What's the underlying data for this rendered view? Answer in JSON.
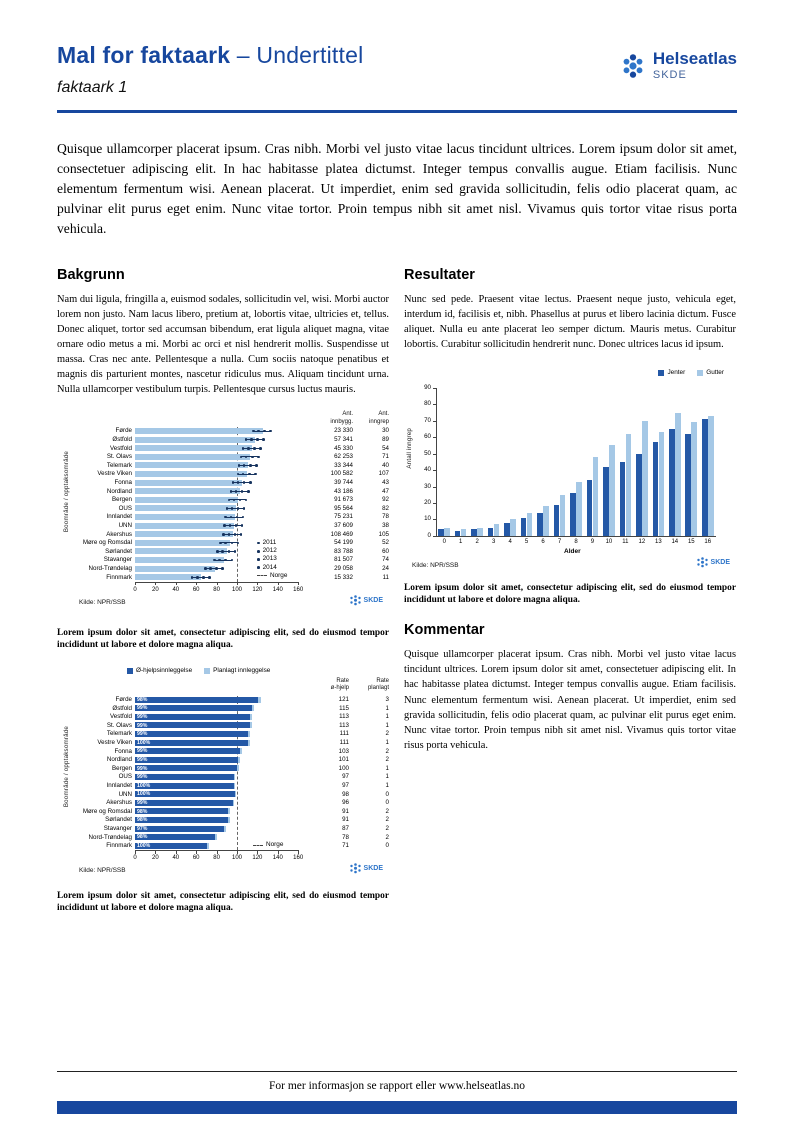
{
  "header": {
    "title": "Mal for faktaark",
    "title_suffix": " – Undertittel",
    "subtitle": "faktaark 1",
    "logo_title": "Helseatlas",
    "logo_sub": "SKDE"
  },
  "intro": "Quisque ullamcorper placerat ipsum. Cras nibh. Morbi vel justo vitae lacus tincidunt ultrices. Lorem ipsum dolor sit amet, consectetuer adipiscing elit. In hac habitasse platea dictumst. Integer tempus convallis augue. Etiam facilisis. Nunc elementum fermentum wisi. Aenean placerat. Ut imperdiet, enim sed gravida sollicitudin, felis odio placerat quam, ac pulvinar elit purus eget enim. Nunc vitae tortor. Proin tempus nibh sit amet nisl. Vivamus quis tortor vitae risus porta vehicula.",
  "bakgrunn": {
    "heading": "Bakgrunn",
    "body": "Nam dui ligula, fringilla a, euismod sodales, sollicitudin vel, wisi. Morbi auctor lorem non justo. Nam lacus libero, pretium at, lobortis vitae, ultricies et, tellus. Donec aliquet, tortor sed accumsan bibendum, erat ligula aliquet magna, vitae ornare odio metus a mi. Morbi ac orci et nisl hendrerit mollis. Suspendisse ut massa. Cras nec ante. Pellentesque a nulla. Cum sociis natoque penatibus et magnis dis parturient montes, nascetur ridiculus mus. Aliquam tincidunt urna. Nulla ullamcorper vestibulum turpis. Pellentesque cursus luctus mauris."
  },
  "resultater": {
    "heading": "Resultater",
    "body": "Nunc sed pede. Praesent vitae lectus. Praesent neque justo, vehicula eget, interdum id, facilisis et, nibh. Phasellus at purus et libero lacinia dictum. Fusce aliquet. Nulla eu ante placerat leo semper dictum. Mauris metus. Curabitur lobortis. Curabitur sollicitudin hendrerit nunc. Donec ultrices lacus id ipsum."
  },
  "kommentar": {
    "heading": "Kommentar",
    "body": "Quisque ullamcorper placerat ipsum. Cras nibh. Morbi vel justo vitae lacus tincidunt ultrices. Lorem ipsum dolor sit amet, consectetuer adipiscing elit. In hac habitasse platea dictumst. Integer tempus convallis augue. Etiam facilisis. Nunc elementum fermentum wisi. Aenean placerat. Ut imperdiet, enim sed gravida sollicitudin, felis odio placerat quam, ac pulvinar elit purus eget enim. Nunc vitae tortor. Proin tempus nibh sit amet nisl. Vivamus quis tortor vitae risus porta vehicula."
  },
  "caption1": "Lorem ipsum dolor sit amet, consectetur adipiscing elit, sed do eiusmod tempor incididunt ut labore et dolore magna aliqua.",
  "caption2": "Lorem ipsum dolor sit amet, consectetur adipiscing elit, sed do eiusmod tempor incididunt ut labore et dolore magna aliqua.",
  "caption3": "Lorem ipsum dolor sit amet, consectetur adipiscing elit, sed do eiusmod tempor incididunt ut labore et dolore magna aliqua.",
  "footer": "For mer informasjon se rapport eller www.helseatlas.no",
  "logos": {
    "skde": "SKDE"
  },
  "colors": {
    "accent": "#17479E",
    "bar_light": "#A5C8E6",
    "bar_dark": "#2458A6",
    "marker": "#16335E"
  },
  "chart_data": [
    {
      "id": "chart1",
      "type": "bar",
      "orientation": "horizontal",
      "ylabel": "Boområde / opptaksområde",
      "xlim": [
        0,
        160
      ],
      "xticks": [
        0,
        20,
        40,
        60,
        80,
        100,
        120,
        140,
        160
      ],
      "legend_years": [
        "2011",
        "2012",
        "2013",
        "2014"
      ],
      "legend_line": "Norge",
      "norge_value": 100,
      "marker_offsets": [
        -9,
        -4,
        2,
        8
      ],
      "col_headers": [
        "Ant.\ninnbygg.",
        "Ant.\ninngrep"
      ],
      "rows": [
        {
          "label": "Førde",
          "value": 125,
          "innbygg": "23 330",
          "inngrep": "30"
        },
        {
          "label": "Østfold",
          "value": 118,
          "innbygg": "57 341",
          "inngrep": "89"
        },
        {
          "label": "Vestfold",
          "value": 115,
          "innbygg": "45 330",
          "inngrep": "54"
        },
        {
          "label": "St. Olavs",
          "value": 113,
          "innbygg": "62 253",
          "inngrep": "71"
        },
        {
          "label": "Telemark",
          "value": 111,
          "innbygg": "33 344",
          "inngrep": "40"
        },
        {
          "label": "Vestre Viken",
          "value": 110,
          "innbygg": "100 582",
          "inngrep": "107"
        },
        {
          "label": "Fonna",
          "value": 105,
          "innbygg": "39 744",
          "inngrep": "43"
        },
        {
          "label": "Nordland",
          "value": 103,
          "innbygg": "43 186",
          "inngrep": "47"
        },
        {
          "label": "Bergen",
          "value": 101,
          "innbygg": "91 673",
          "inngrep": "92"
        },
        {
          "label": "OUS",
          "value": 99,
          "innbygg": "95 564",
          "inngrep": "82"
        },
        {
          "label": "Innlandet",
          "value": 98,
          "innbygg": "75 231",
          "inngrep": "78"
        },
        {
          "label": "UNN",
          "value": 97,
          "innbygg": "37 609",
          "inngrep": "38"
        },
        {
          "label": "Akershus",
          "value": 96,
          "innbygg": "108 469",
          "inngrep": "105"
        },
        {
          "label": "Møre og Romsdal",
          "value": 93,
          "innbygg": "54 199",
          "inngrep": "52"
        },
        {
          "label": "Sørlandet",
          "value": 90,
          "innbygg": "83 788",
          "inngrep": "60"
        },
        {
          "label": "Stavanger",
          "value": 87,
          "innbygg": "81 507",
          "inngrep": "74"
        },
        {
          "label": "Nord-Trøndelag",
          "value": 78,
          "innbygg": "29 058",
          "inngrep": "24"
        },
        {
          "label": "Finnmark",
          "value": 65,
          "innbygg": "15 332",
          "inngrep": "11"
        }
      ],
      "source": "Kilde: NPR/SSB"
    },
    {
      "id": "chart2",
      "type": "bar",
      "orientation": "horizontal",
      "stacked": true,
      "ylabel": "Boområde / opptaksområde",
      "legend": [
        {
          "label": "Ø-hjelpsinnleggelse",
          "color": "#2458A6"
        },
        {
          "label": "Planlagt innleggelse",
          "color": "#A5C8E6"
        }
      ],
      "xlim": [
        0,
        160
      ],
      "xticks": [
        0,
        20,
        40,
        60,
        80,
        100,
        120,
        140,
        160
      ],
      "norge_value": 100,
      "legend_line": "Norge",
      "col_headers": [
        "Rate\nø-hjelp",
        "Rate\nplanlagt"
      ],
      "rows": [
        {
          "label": "Førde",
          "pct": "98%",
          "ohjelp": 121,
          "planlagt": 3
        },
        {
          "label": "Østfold",
          "pct": "99%",
          "ohjelp": 115,
          "planlagt": 1
        },
        {
          "label": "Vestfold",
          "pct": "99%",
          "ohjelp": 113,
          "planlagt": 1
        },
        {
          "label": "St. Olavs",
          "pct": "99%",
          "ohjelp": 113,
          "planlagt": 1
        },
        {
          "label": "Telemark",
          "pct": "99%",
          "ohjelp": 111,
          "planlagt": 2
        },
        {
          "label": "Vestre Viken",
          "pct": "100%",
          "ohjelp": 111,
          "planlagt": 1
        },
        {
          "label": "Fonna",
          "pct": "99%",
          "ohjelp": 103,
          "planlagt": 2
        },
        {
          "label": "Nordland",
          "pct": "99%",
          "ohjelp": 101,
          "planlagt": 2
        },
        {
          "label": "Bergen",
          "pct": "99%",
          "ohjelp": 100,
          "planlagt": 1
        },
        {
          "label": "OUS",
          "pct": "99%",
          "ohjelp": 97,
          "planlagt": 1
        },
        {
          "label": "Innlandet",
          "pct": "100%",
          "ohjelp": 97,
          "planlagt": 1
        },
        {
          "label": "UNN",
          "pct": "100%",
          "ohjelp": 98,
          "planlagt": 0
        },
        {
          "label": "Akershus",
          "pct": "99%",
          "ohjelp": 96,
          "planlagt": 0
        },
        {
          "label": "Møre og Romsdal",
          "pct": "98%",
          "ohjelp": 91,
          "planlagt": 2
        },
        {
          "label": "Sørlandet",
          "pct": "98%",
          "ohjelp": 91,
          "planlagt": 2
        },
        {
          "label": "Stavanger",
          "pct": "97%",
          "ohjelp": 87,
          "planlagt": 2
        },
        {
          "label": "Nord-Trøndelag",
          "pct": "98%",
          "ohjelp": 78,
          "planlagt": 2
        },
        {
          "label": "Finnmark",
          "pct": "100%",
          "ohjelp": 71,
          "planlagt": 0
        }
      ],
      "source": "Kilde: NPR/SSB"
    },
    {
      "id": "chart3",
      "type": "bar",
      "orientation": "vertical",
      "xlabel": "Alder",
      "ylabel": "Antall inngrep",
      "ylim": [
        0,
        90
      ],
      "yticks": [
        0,
        10,
        20,
        30,
        40,
        50,
        60,
        70,
        80,
        90
      ],
      "categories": [
        "0",
        "1",
        "2",
        "3",
        "4",
        "5",
        "6",
        "7",
        "8",
        "9",
        "10",
        "11",
        "12",
        "13",
        "14",
        "15",
        "16"
      ],
      "series": [
        {
          "name": "Jenter",
          "color": "#2458A6",
          "values": [
            4,
            3,
            4,
            5,
            8,
            11,
            14,
            19,
            26,
            34,
            42,
            45,
            50,
            57,
            65,
            62,
            71
          ]
        },
        {
          "name": "Gutter",
          "color": "#A5C8E6",
          "values": [
            5,
            4,
            5,
            7,
            10,
            14,
            18,
            25,
            33,
            48,
            55,
            62,
            70,
            63,
            75,
            69,
            73
          ]
        }
      ],
      "source": "Kilde: NPR/SSB"
    }
  ]
}
